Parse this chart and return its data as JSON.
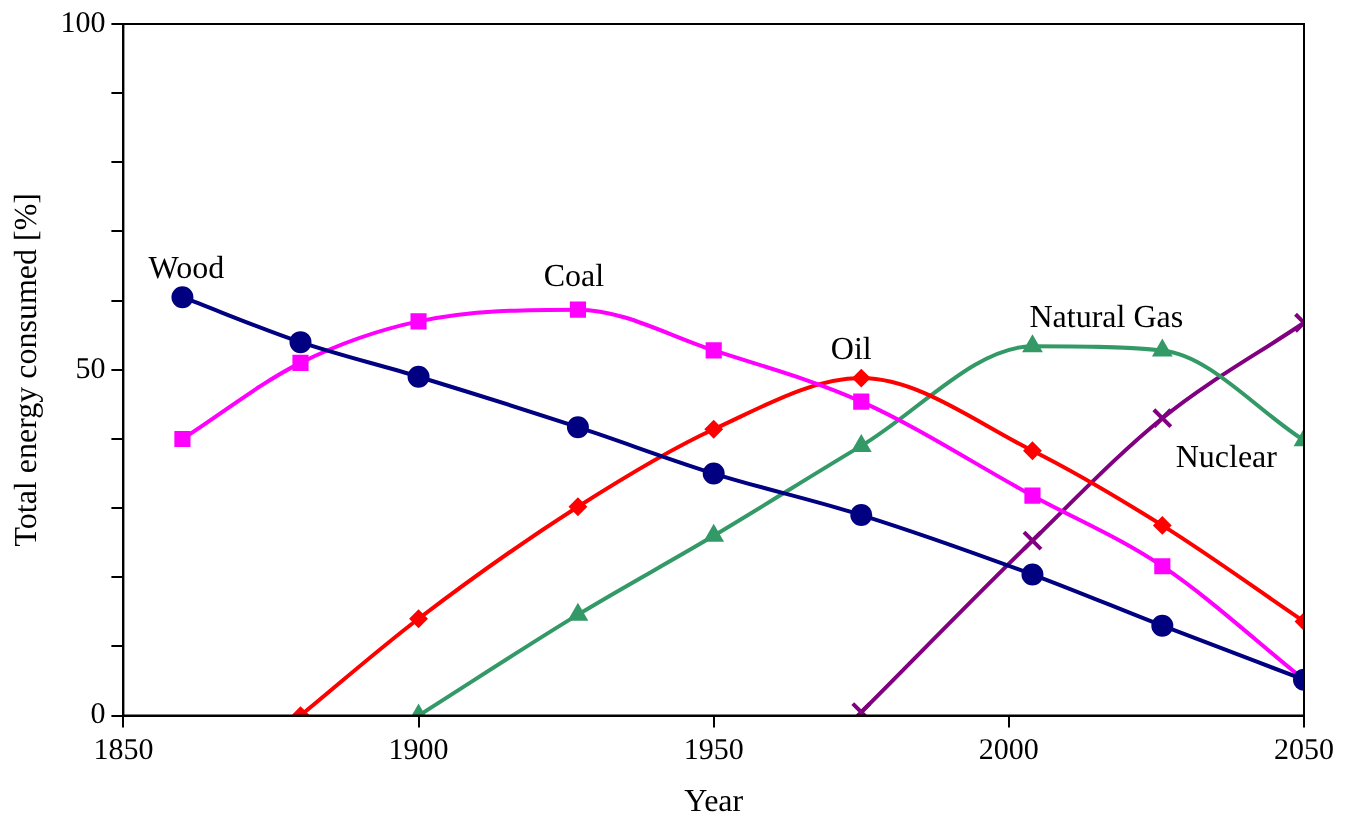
{
  "chart_data": {
    "type": "line",
    "xlabel": "Year",
    "ylabel": "Total energy consumed [%]",
    "xlim": [
      1850,
      2050
    ],
    "xticks": [
      1850,
      1900,
      1950,
      2000,
      2050
    ],
    "ylim": [
      0,
      100
    ],
    "yticks": [
      0,
      {
        "value": 10,
        "label": null
      },
      {
        "value": 20,
        "label": null
      },
      {
        "value": 30,
        "label": null
      },
      {
        "value": 40,
        "label": null
      },
      50,
      {
        "value": 60,
        "label": null
      },
      {
        "value": 70,
        "label": null
      },
      {
        "value": 80,
        "label": null
      },
      {
        "value": 90,
        "label": null
      },
      100
    ],
    "grid": false,
    "legend": false,
    "series": [
      {
        "name": "Wood",
        "color": "#000080",
        "marker": "circle",
        "x": [
          1860,
          1880,
          1900,
          1927,
          1950,
          1975,
          2004,
          2026,
          2050
        ],
        "values": [
          60.5,
          54,
          49,
          41.7,
          35,
          29,
          20.4,
          13,
          5.2
        ]
      },
      {
        "name": "Coal",
        "color": "#ff00ff",
        "marker": "square",
        "x": [
          1860,
          1880,
          1900,
          1927,
          1950,
          1975,
          2004,
          2026,
          2050
        ],
        "values": [
          40,
          51,
          57,
          58.7,
          52.8,
          45.4,
          31.8,
          21.6,
          5.2
        ]
      },
      {
        "name": "Oil",
        "color": "#ff0000",
        "marker": "diamond",
        "x": [
          1880,
          1900,
          1927,
          1950,
          1975,
          2004,
          2026,
          2050
        ],
        "values": [
          0,
          14,
          30.2,
          41.4,
          48.8,
          38.3,
          27.5,
          13.6
        ]
      },
      {
        "name": "Natural Gas",
        "color": "#339966",
        "marker": "triangle",
        "x": [
          1900,
          1927,
          1950,
          1975,
          2004,
          2026,
          2050
        ],
        "values": [
          0,
          14.6,
          26,
          39,
          53.4,
          52.8,
          39.8
        ]
      },
      {
        "name": "Nuclear",
        "color": "#800080",
        "marker": "cross",
        "x": [
          1975,
          2004,
          2026,
          2050
        ],
        "values": [
          0.5,
          25.3,
          43,
          56.8
        ]
      }
    ]
  }
}
